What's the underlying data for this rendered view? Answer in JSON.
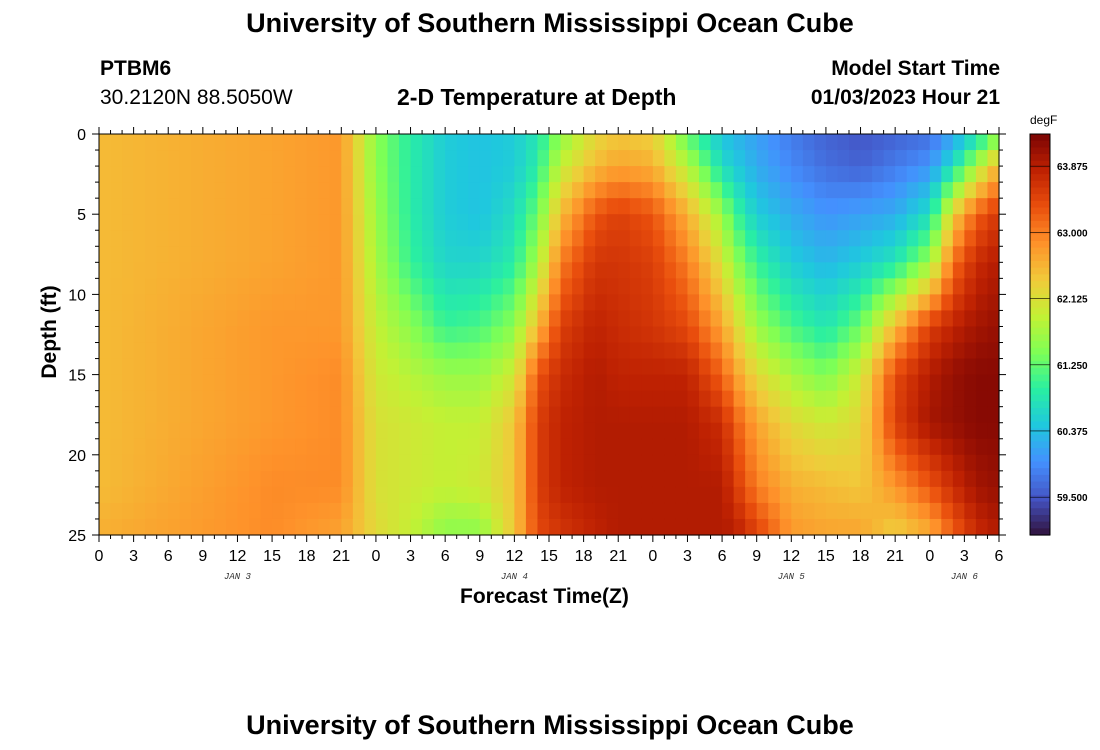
{
  "header": {
    "title": "University of Southern Mississippi Ocean Cube",
    "station_id": "PTBM6",
    "station_coords": "30.2120N  88.5050W",
    "plot_title": "2-D Temperature at Depth",
    "model_start_label": "Model Start Time",
    "model_start_value": "01/03/2023 Hour 21"
  },
  "footer": {
    "title": "University of Southern Mississippi Ocean Cube"
  },
  "chart_data": {
    "type": "heatmap",
    "title": "2-D Temperature at Depth",
    "xlabel": "Forecast Time(Z)",
    "ylabel": "Depth (ft)",
    "x_tick_labels": [
      "0",
      "3",
      "6",
      "9",
      "12",
      "15",
      "18",
      "21",
      "0",
      "3",
      "6",
      "9",
      "12",
      "15",
      "18",
      "21",
      "0",
      "3",
      "6",
      "9",
      "12",
      "15",
      "18",
      "21",
      "0",
      "3",
      "6"
    ],
    "x_range_hours": [
      0,
      78
    ],
    "date_labels": [
      {
        "label": "JAN 3",
        "hour": 12
      },
      {
        "label": "JAN 4",
        "hour": 36
      },
      {
        "label": "JAN 5",
        "hour": 60
      },
      {
        "label": "JAN 6",
        "hour": 75
      }
    ],
    "y_tick_labels": [
      "0",
      "5",
      "10",
      "15",
      "20",
      "25"
    ],
    "y_range_ft": [
      0,
      25
    ],
    "colorbar": {
      "unit": "degF",
      "labels": [
        "63.875",
        "63.000",
        "62.125",
        "61.250",
        "60.375",
        "59.500"
      ],
      "range": [
        59.0,
        64.3
      ],
      "colors": [
        "#30123b",
        "#4454c4",
        "#4490fe",
        "#1fc8de",
        "#29efa2",
        "#7eff55",
        "#c3f134",
        "#f1ca3a",
        "#fe922a",
        "#ea4f0d",
        "#be2102",
        "#7a0403"
      ]
    },
    "control_points": {
      "hours": [
        0,
        15,
        21,
        24,
        27,
        30,
        33,
        36,
        38,
        40,
        43,
        45,
        48,
        51,
        54,
        55,
        57,
        60,
        63,
        66,
        69,
        72,
        74,
        76,
        78
      ],
      "depths_ft": [
        0,
        2,
        5,
        8,
        12,
        15,
        18,
        22,
        25
      ],
      "values_degF": [
        [
          62.5,
          62.5,
          62.5,
          62.5,
          62.5,
          62.5,
          62.5,
          62.5,
          62.6
        ],
        [
          62.7,
          62.7,
          62.7,
          62.7,
          62.8,
          62.8,
          62.8,
          62.9,
          62.9
        ],
        [
          62.8,
          62.8,
          62.8,
          62.8,
          62.8,
          62.9,
          62.9,
          62.9,
          62.7
        ],
        [
          61.5,
          61.5,
          61.6,
          61.7,
          61.9,
          62.0,
          62.1,
          62.1,
          62.2
        ],
        [
          60.9,
          60.9,
          60.9,
          61.0,
          61.5,
          61.8,
          62.0,
          62.0,
          61.9
        ],
        [
          60.5,
          60.5,
          60.5,
          60.6,
          61.0,
          61.6,
          61.9,
          61.9,
          61.5
        ],
        [
          60.4,
          60.4,
          60.4,
          60.6,
          61.1,
          61.6,
          61.9,
          62.0,
          61.5
        ],
        [
          60.5,
          60.5,
          60.7,
          60.9,
          61.5,
          62.0,
          62.4,
          62.4,
          62.4
        ],
        [
          60.8,
          60.9,
          61.3,
          61.7,
          62.5,
          63.3,
          63.5,
          63.5,
          63.4
        ],
        [
          61.5,
          61.9,
          62.5,
          63.0,
          63.5,
          63.7,
          63.8,
          63.8,
          63.6
        ],
        [
          62.2,
          62.5,
          63.3,
          63.6,
          63.8,
          63.9,
          63.9,
          63.9,
          63.8
        ],
        [
          62.4,
          62.7,
          63.5,
          63.6,
          63.7,
          63.8,
          63.9,
          63.9,
          63.9
        ],
        [
          62.3,
          62.6,
          63.3,
          63.5,
          63.6,
          63.8,
          63.9,
          63.9,
          63.9
        ],
        [
          61.2,
          61.8,
          62.6,
          63.0,
          63.4,
          63.8,
          63.9,
          63.9,
          63.9
        ],
        [
          60.4,
          60.7,
          61.6,
          62.1,
          62.7,
          63.2,
          63.7,
          63.9,
          63.9
        ],
        [
          60.3,
          60.5,
          61.1,
          61.6,
          62.3,
          62.8,
          63.3,
          63.6,
          63.9
        ],
        [
          60.1,
          60.2,
          60.5,
          61.0,
          61.6,
          62.2,
          62.7,
          63.0,
          63.5
        ],
        [
          59.8,
          59.9,
          60.2,
          60.5,
          61.1,
          61.7,
          62.2,
          62.6,
          62.8
        ],
        [
          59.6,
          59.7,
          60.0,
          60.3,
          60.8,
          61.4,
          62.0,
          62.5,
          62.7
        ],
        [
          59.5,
          59.6,
          60.1,
          60.5,
          61.3,
          62.0,
          62.2,
          62.4,
          62.7
        ],
        [
          59.6,
          59.8,
          60.2,
          60.8,
          62.5,
          63.4,
          63.5,
          62.8,
          62.3
        ],
        [
          59.7,
          60.0,
          60.7,
          61.6,
          63.5,
          63.9,
          64.0,
          63.3,
          62.6
        ],
        [
          60.1,
          60.7,
          62.3,
          63.1,
          63.8,
          64.1,
          64.1,
          63.7,
          63.2
        ],
        [
          60.6,
          61.7,
          63.2,
          63.7,
          64.0,
          64.2,
          64.2,
          64.0,
          63.7
        ],
        [
          61.4,
          62.6,
          63.6,
          63.9,
          64.1,
          64.2,
          64.2,
          64.1,
          63.9
        ]
      ]
    }
  }
}
